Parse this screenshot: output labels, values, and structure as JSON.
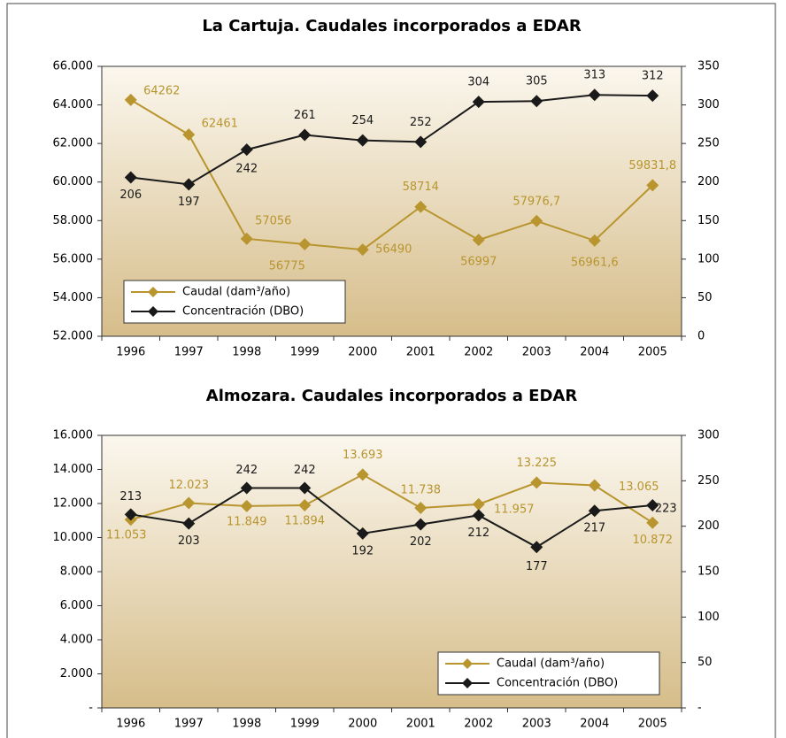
{
  "chart_data": [
    {
      "type": "line",
      "title": "La Cartuja. Caudales incorporados a EDAR",
      "categories": [
        "1996",
        "1997",
        "1998",
        "1999",
        "2000",
        "2001",
        "2002",
        "2003",
        "2004",
        "2005"
      ],
      "ylim": [
        52000,
        66000
      ],
      "yticks": [
        {
          "value": 52000,
          "label": "52.000"
        },
        {
          "value": 54000,
          "label": "54.000"
        },
        {
          "value": 56000,
          "label": "56.000"
        },
        {
          "value": 58000,
          "label": "58.000"
        },
        {
          "value": 60000,
          "label": "60.000"
        },
        {
          "value": 62000,
          "label": "62.000"
        },
        {
          "value": 64000,
          "label": "64.000"
        },
        {
          "value": 66000,
          "label": "66.000"
        }
      ],
      "y2lim": [
        0,
        350
      ],
      "y2ticks": [
        0,
        50,
        100,
        150,
        200,
        250,
        300,
        350
      ],
      "legend": "lower left",
      "series": [
        {
          "name": "Caudal (dam³/año)",
          "color": "#b8952e",
          "values": [
            64262,
            62461,
            57056,
            56775,
            56490,
            58714,
            56997,
            57976.7,
            56961.6,
            59831.8
          ],
          "value_labels": [
            "64262",
            "62461",
            "57056",
            "56775",
            "56490",
            "58714",
            "56997",
            "57976,7",
            "56961,6",
            "59831,8"
          ]
        },
        {
          "name": "Concentración (DBO)",
          "color": "#1a1a1a",
          "axis": "y2",
          "values": [
            206,
            197,
            242,
            261,
            254,
            252,
            304,
            305,
            313,
            312
          ]
        }
      ]
    },
    {
      "type": "line",
      "title": "Almozara. Caudales incorporados a EDAR",
      "categories": [
        "1996",
        "1997",
        "1998",
        "1999",
        "2000",
        "2001",
        "2002",
        "2003",
        "2004",
        "2005"
      ],
      "ylim": [
        0,
        16000
      ],
      "yticks": [
        {
          "value": 0,
          "label": "-"
        },
        {
          "value": 2000,
          "label": "2.000"
        },
        {
          "value": 4000,
          "label": "4.000"
        },
        {
          "value": 6000,
          "label": "6.000"
        },
        {
          "value": 8000,
          "label": "8.000"
        },
        {
          "value": 10000,
          "label": "10.000"
        },
        {
          "value": 12000,
          "label": "12.000"
        },
        {
          "value": 14000,
          "label": "14.000"
        },
        {
          "value": 16000,
          "label": "16.000"
        }
      ],
      "y2lim": [
        0,
        300
      ],
      "y2ticks": [
        {
          "value": 0,
          "label": "-"
        },
        50,
        100,
        150,
        200,
        250,
        300
      ],
      "legend": "lower right",
      "series": [
        {
          "name": "Caudal (dam³/año)",
          "color": "#b8952e",
          "values": [
            11053,
            12023,
            11849,
            11894,
            13693,
            11738,
            11957,
            13225,
            13065,
            10872
          ],
          "value_labels": [
            "11.053",
            "12.023",
            "11.849",
            "11.894",
            "13.693",
            "11.738",
            "11.957",
            "13.225",
            "13.065",
            "10.872"
          ]
        },
        {
          "name": "Concentración (DBO)",
          "color": "#1a1a1a",
          "axis": "y2",
          "values": [
            213,
            203,
            242,
            242,
            192,
            202,
            212,
            177,
            217,
            223
          ]
        }
      ]
    }
  ]
}
